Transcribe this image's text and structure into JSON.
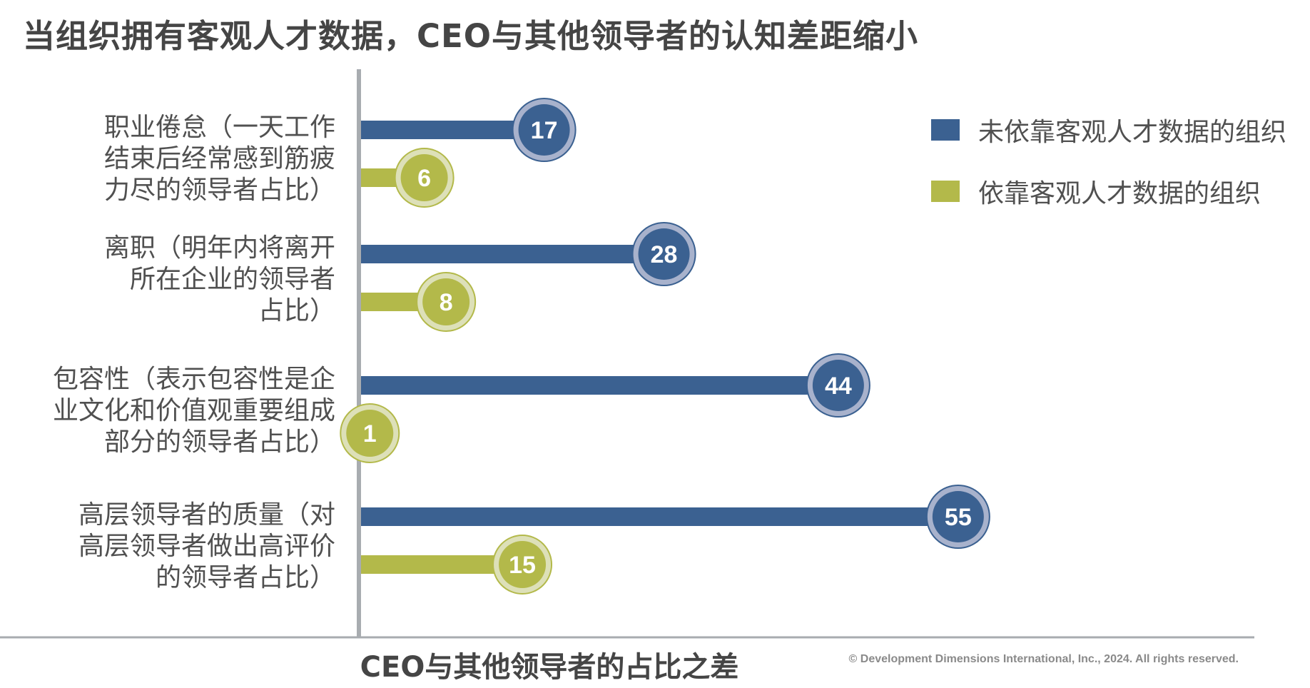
{
  "title": "当组织拥有客观人才数据，CEO与其他领导者的认知差距缩小",
  "colors": {
    "series_no_data": "#3b6191",
    "series_data": "#b3b94a",
    "ring_no_data": "#a8b2cc",
    "ring_data": "#dde0b8",
    "axis": "#a8acb0",
    "baseline": "#a8acb0"
  },
  "legend": {
    "position": "top-right",
    "items": [
      {
        "label": "未依靠客观人才数据的组织",
        "color": "#3b6191"
      },
      {
        "label": "依靠客观人才数据的组织",
        "color": "#b3b94a"
      }
    ]
  },
  "x_axis_title": "CEO与其他领导者的占比之差",
  "copyright": "© Development Dimensions International,  Inc., 2024. All rights reserved.",
  "chart_data": {
    "type": "bar",
    "orientation": "horizontal",
    "title": "当组织拥有客观人才数据，CEO与其他领导者的认知差距缩小",
    "xlabel": "CEO与其他领导者的占比之差",
    "ylabel": "",
    "xlim": [
      0,
      60
    ],
    "grid": false,
    "legend_position": "top-right",
    "categories": [
      "职业倦怠（一天工作结束后经常感到筋疲力尽的领导者占比）",
      "离职（明年内将离开所在企业的领导者占比）",
      "包容性（表示包容性是企业文化和价值观重要组成部分的领导者占比）",
      "高层领导者的质量（对高层领导者做出高评价的领导者占比）"
    ],
    "category_lines": [
      [
        "职业倦怠（一天工作",
        "结束后经常感到筋疲",
        "力尽的领导者占比）"
      ],
      [
        "离职（明年内将离开",
        "所在企业的领导者",
        "占比）"
      ],
      [
        "包容性（表示包容性是企",
        "业文化和价值观重要组成",
        "部分的领导者占比）"
      ],
      [
        "高层领导者的质量（对",
        "高层领导者做出高评价",
        "的领导者占比）"
      ]
    ],
    "series": [
      {
        "name": "未依靠客观人才数据的组织",
        "values": [
          17,
          28,
          44,
          55
        ]
      },
      {
        "name": "依靠客观人才数据的组织",
        "values": [
          6,
          8,
          1,
          15
        ]
      }
    ]
  }
}
